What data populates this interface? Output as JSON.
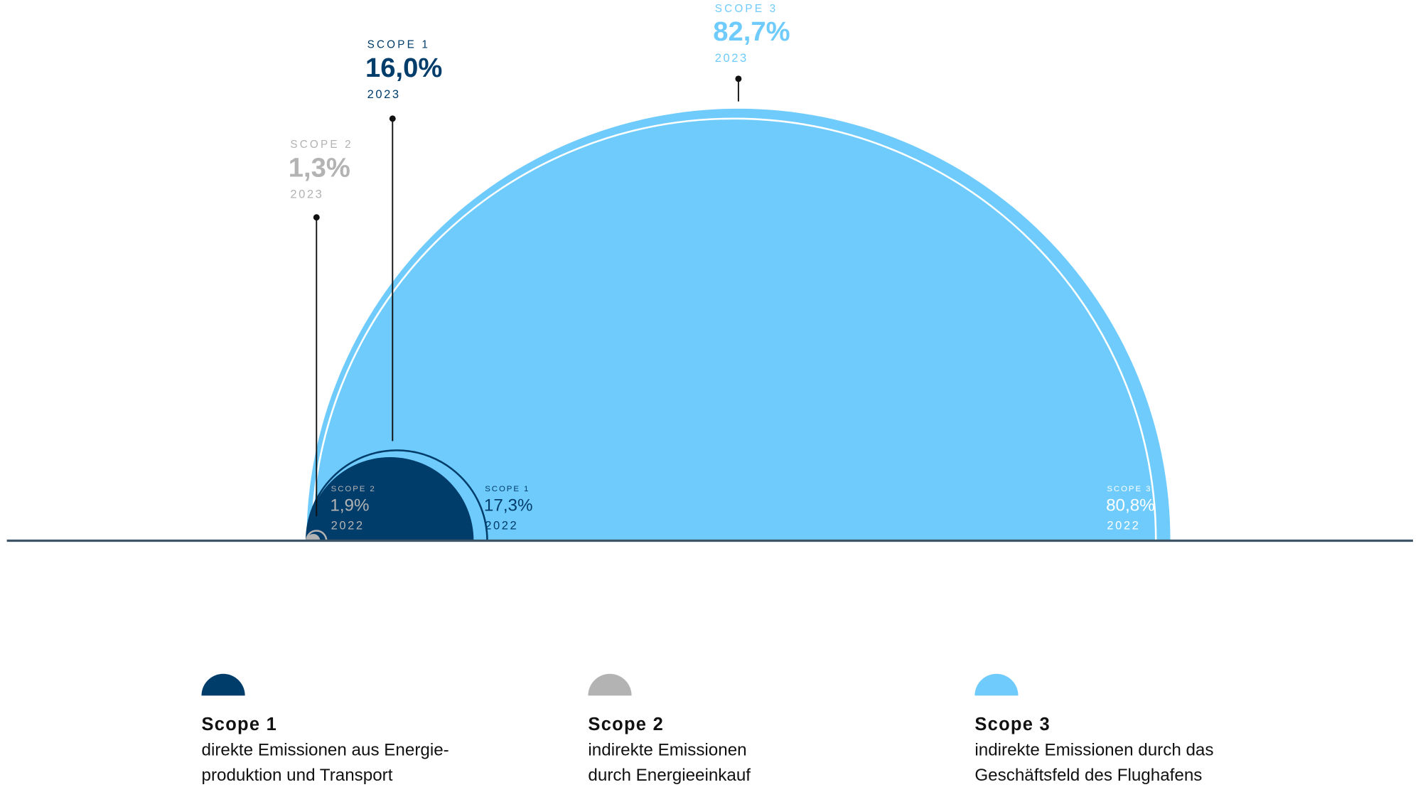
{
  "chart_data": {
    "type": "semicircle",
    "years": [
      "2023",
      "2022"
    ],
    "series": [
      {
        "name": "Scope 1",
        "tag": "SCOPE 1",
        "color": "#003d6b",
        "values": [
          16.0,
          17.3
        ],
        "value_labels": [
          "16,0%",
          "17,3%"
        ],
        "description": [
          "direkte Emissionen aus Energie-",
          "produktion und Transport"
        ]
      },
      {
        "name": "Scope 2",
        "tag": "SCOPE 2",
        "color": "#b3b3b3",
        "values": [
          1.3,
          1.9
        ],
        "value_labels": [
          "1,3%",
          "1,9%"
        ],
        "description": [
          "indirekte Emissionen",
          "durch Energieeinkauf"
        ]
      },
      {
        "name": "Scope 3",
        "tag": "SCOPE 3",
        "color": "#6ecbfc",
        "values": [
          82.7,
          80.8
        ],
        "value_labels": [
          "82,7%",
          "80,8%"
        ],
        "description": [
          "indirekte Emissionen durch das",
          "Geschäftsfeld des Flughafens"
        ]
      }
    ]
  }
}
